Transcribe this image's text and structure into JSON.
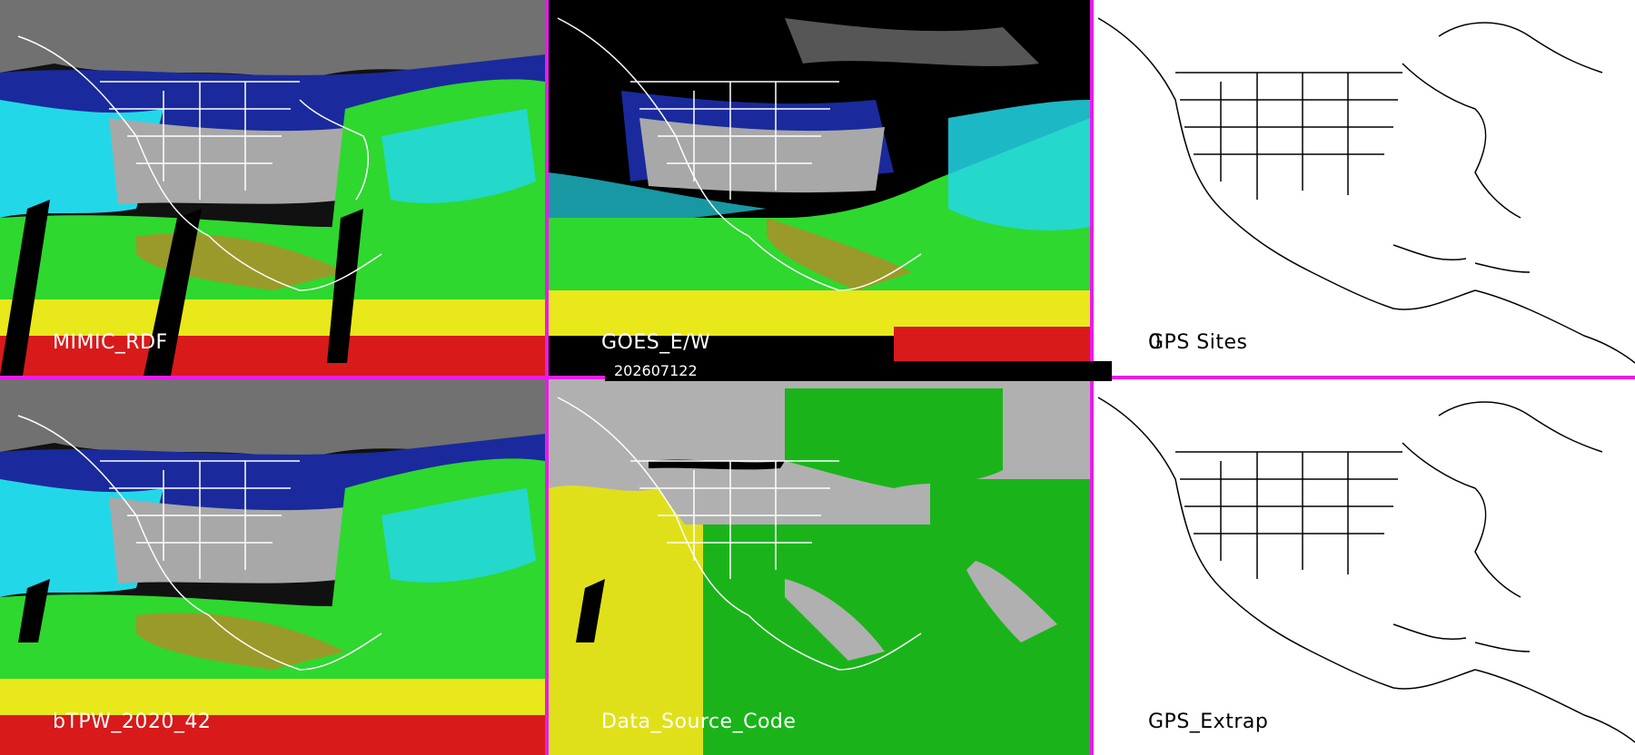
{
  "panels": [
    {
      "label": "MIMIC_RDF"
    },
    {
      "label": "GOES_E/W"
    },
    {
      "label": "GPS Sites",
      "count": "0"
    },
    {
      "label": "bTPW_2020_42"
    },
    {
      "label": "Data_Source_Code"
    },
    {
      "label": "GPS_Extrap"
    }
  ],
  "timestamp": "202607122",
  "colors": {
    "divider": "#e81ce8",
    "tpw_gray": "#9a9a9a",
    "tpw_blue": "#1a2a9c",
    "tpw_cyan": "#22d8e8",
    "tpw_green": "#2ed82e",
    "tpw_olive": "#9a9a2a",
    "tpw_yellow": "#e8e81a",
    "tpw_red": "#d81a1a",
    "source_yellow": "#e0e01a",
    "source_green": "#1ab41a",
    "source_gray": "#b0b0b0"
  }
}
